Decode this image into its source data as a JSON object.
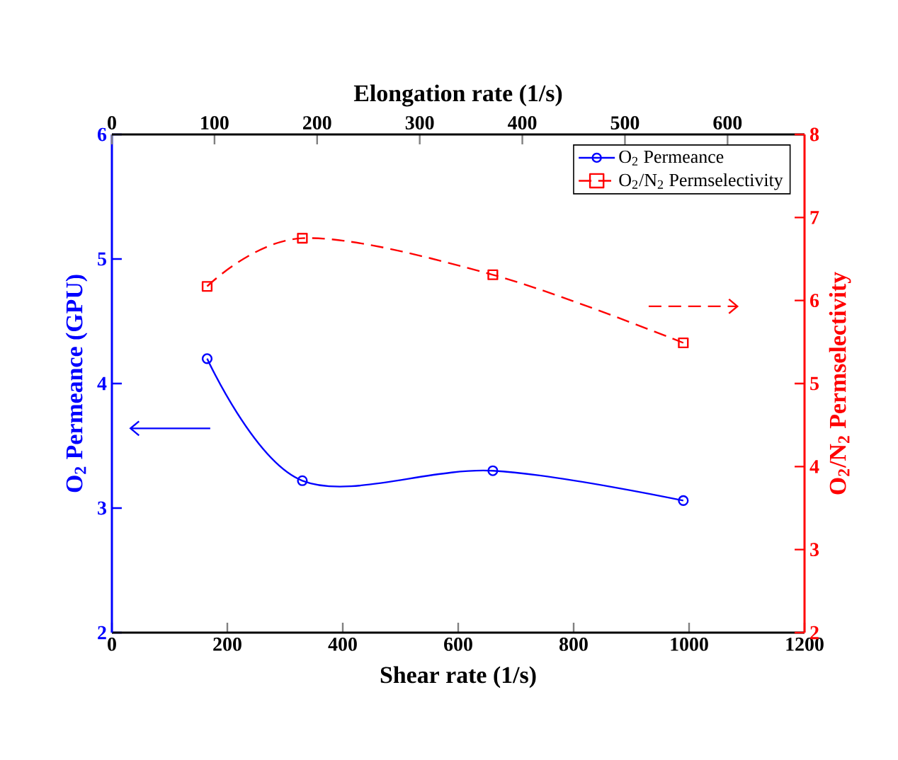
{
  "chart_data": {
    "type": "line",
    "xlabel": "Shear rate (1/s)",
    "ylabel": "O$_{2}$ Permeance (GPU)",
    "y2label": "O$_{2}$/N$_{2}$ Permselectivity",
    "x2label": "Elongation rate (1/s)",
    "x": [
      165,
      330,
      660,
      990
    ],
    "series": [
      {
        "name": "O$_{2}$      Permeance",
        "color": "#0000ff",
        "values": [
          4.2,
          3.22,
          3.3,
          3.06
        ],
        "marker": "circle",
        "line_style": "solid"
      },
      {
        "name": "O$_{2}$/N$_{2}$ Permselectivity",
        "color": "#ff0000",
        "values": [
          6.17,
          6.75,
          6.31,
          5.49
        ],
        "marker": "square",
        "line_style": "dashed",
        "axis": "y2"
      }
    ],
    "xlim": [
      0,
      1200
    ],
    "xticks": [
      0,
      200,
      400,
      600,
      800,
      1000,
      1200
    ],
    "x2lim": [
      0,
      675
    ],
    "x2ticks": [
      0,
      100,
      200,
      300,
      400,
      500,
      600
    ],
    "ylim": [
      2,
      6
    ],
    "yticks": [
      2,
      3,
      4,
      5,
      6
    ],
    "y2lim": [
      2,
      8
    ],
    "y2ticks": [
      2,
      3,
      4,
      5,
      6,
      7,
      8
    ],
    "grid": false,
    "legend": "top right"
  }
}
